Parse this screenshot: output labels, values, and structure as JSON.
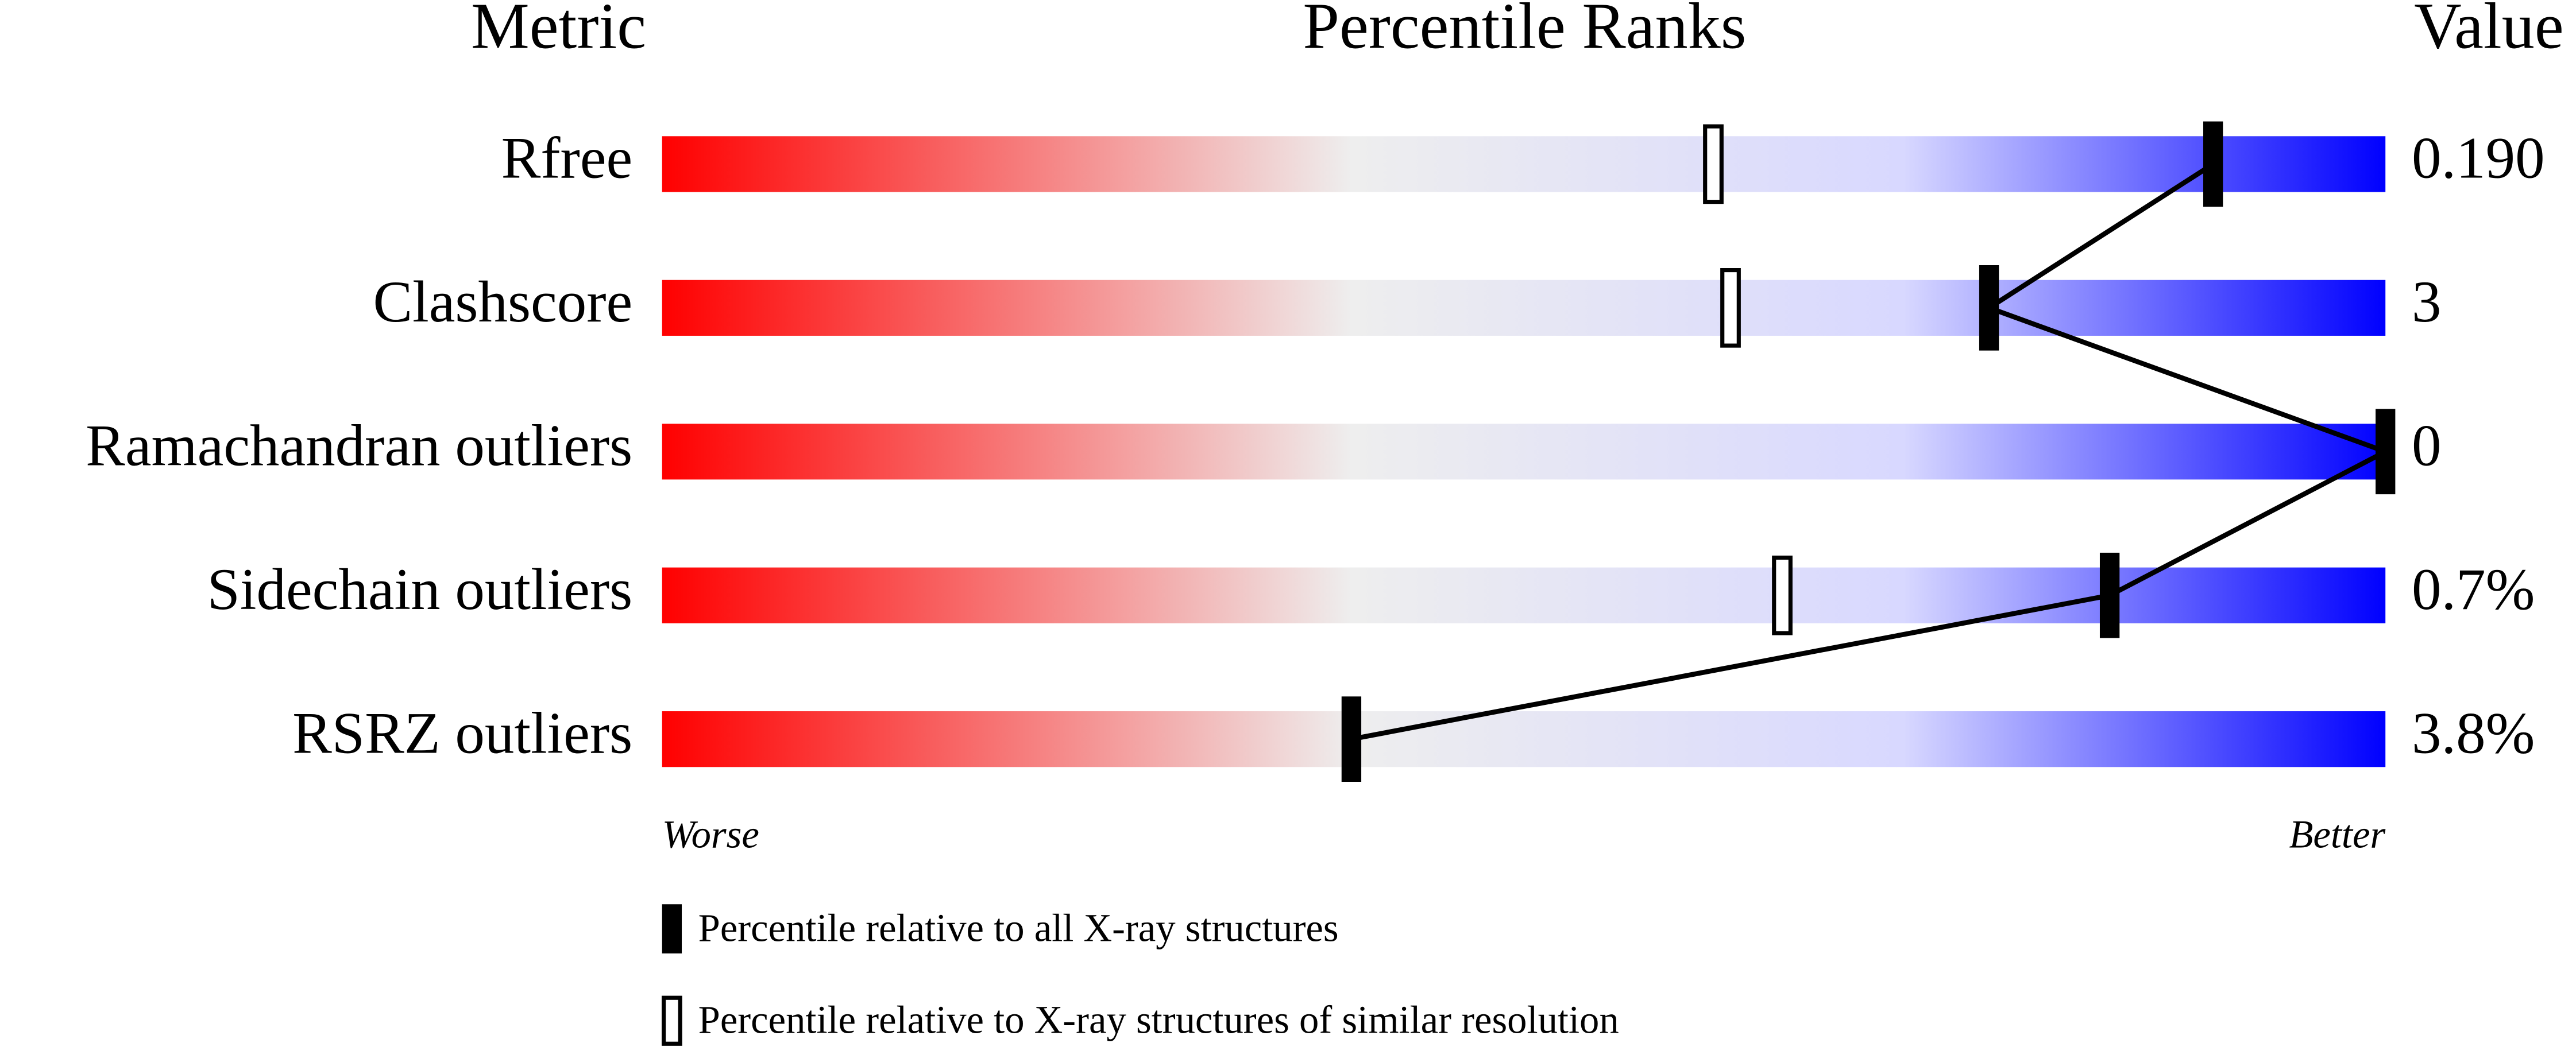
{
  "chart_data": {
    "type": "slider",
    "metric_header": "Metric",
    "title": "Percentile Ranks",
    "value_header": "Value",
    "categories": [
      "Rfree",
      "Clashscore",
      "Ramachandran outliers",
      "Sidechain outliers",
      "RSRZ outliers"
    ],
    "value_texts": [
      "0.190",
      "3",
      "0",
      "0.7%",
      "3.8%"
    ],
    "xlim": [
      0,
      100
    ],
    "x_low_label": "Worse",
    "x_high_label": "Better",
    "colors": [
      "#ff0000",
      "#eeeeee",
      "#d8d8ff",
      "#0000ff"
    ],
    "series": [
      {
        "name": "Percentile relative to all X-ray structures",
        "marker": "filled",
        "color": "#000000",
        "values": [
          90,
          77,
          100,
          84,
          40
        ]
      },
      {
        "name": "Percentile relative to X-ray structures of similar resolution",
        "marker": "hollow",
        "color": "#000000",
        "values": [
          61,
          62,
          null,
          65,
          null
        ]
      }
    ]
  }
}
